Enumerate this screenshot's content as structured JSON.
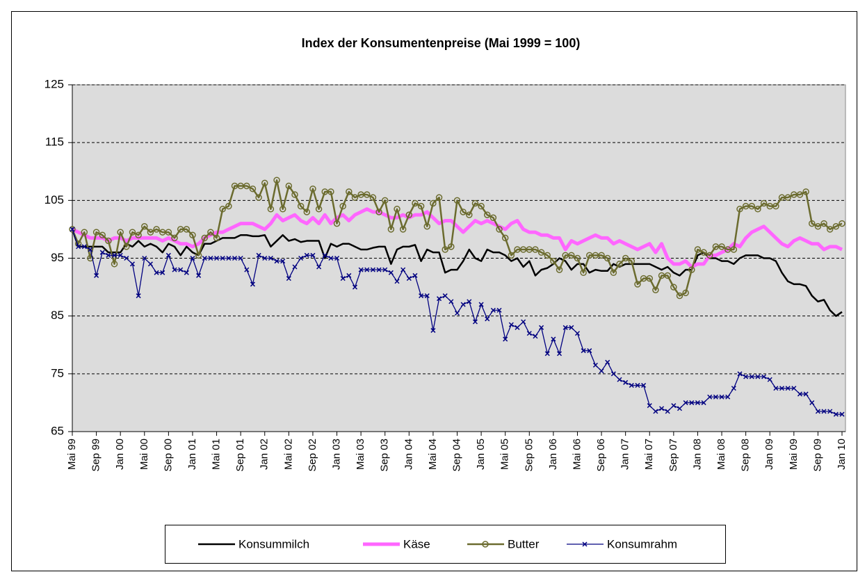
{
  "chart_data": {
    "type": "line",
    "title": "Index der Konsumentenpreise  (Mai 1999 = 100)",
    "categories": [
      "Mai 99",
      null,
      null,
      null,
      "Sep 99",
      null,
      null,
      null,
      "Jan 00",
      null,
      null,
      null,
      "Mai 00",
      null,
      null,
      null,
      "Sep 00",
      null,
      null,
      null,
      "Jan 01",
      null,
      null,
      null,
      "Mai 01",
      null,
      null,
      null,
      "Sep 01",
      null,
      null,
      null,
      "Jan 02",
      null,
      null,
      null,
      "Mai 02",
      null,
      null,
      null,
      "Sep 02",
      null,
      null,
      null,
      "Jan 03",
      null,
      null,
      null,
      "Mai 03",
      null,
      null,
      null,
      "Sep 03",
      null,
      null,
      null,
      "Jan 04",
      null,
      null,
      null,
      "Mai 04",
      null,
      null,
      null,
      "Sep 04",
      null,
      null,
      null,
      "Jan 05",
      null,
      null,
      null,
      "Mai 05",
      null,
      null,
      null,
      "Sep 05",
      null,
      null,
      null,
      "Jan 06",
      null,
      null,
      null,
      "Mai 06",
      null,
      null,
      null,
      "Sep 06",
      null,
      null,
      null,
      "Jan 07",
      null,
      null,
      null,
      "Mai 07",
      null,
      null,
      null,
      "Sep 07",
      null,
      null,
      null,
      "Jan 08",
      null,
      null,
      null,
      "Mai 08",
      null,
      null,
      null,
      "Sep 08",
      null,
      null,
      null,
      "Jan 09",
      null,
      null,
      null,
      "Mai 09",
      null,
      null,
      null,
      "Sep 09",
      null,
      null,
      null,
      "Jan 10"
    ],
    "series": [
      {
        "name": "Konsummilch",
        "color": "#000000",
        "marker": "none",
        "values": [
          100,
          97,
          97,
          97,
          97,
          97,
          96,
          96,
          96,
          97.5,
          97,
          98,
          97,
          97.5,
          97,
          96,
          97.5,
          97,
          95.5,
          97,
          96,
          95.5,
          97.5,
          97.5,
          98,
          98.5,
          98.5,
          98.5,
          99,
          99,
          98.8,
          98.8,
          99,
          97,
          98,
          99,
          98,
          98.3,
          97.8,
          98,
          98,
          98,
          95,
          97.5,
          97,
          97.5,
          97.5,
          97,
          96.5,
          96.5,
          96.8,
          97,
          97,
          94,
          96.5,
          97,
          97,
          97.3,
          94.5,
          96.5,
          96,
          96,
          92.5,
          93,
          93,
          94.5,
          96.5,
          95,
          94.5,
          96.5,
          96,
          96,
          95.5,
          94.5,
          95,
          93.5,
          94.5,
          92,
          93,
          93.3,
          94,
          95,
          94.5,
          93,
          94,
          94,
          92.5,
          93,
          92.8,
          92.8,
          94,
          93.5,
          94,
          94,
          94,
          94,
          94,
          93.5,
          93,
          93.5,
          92.5,
          92,
          93,
          93,
          95.5,
          96,
          95,
          95,
          94.5,
          94.5,
          94,
          95,
          95.5,
          95.5,
          95.5,
          95,
          95,
          94.5,
          92.5,
          91,
          90.5,
          90.5,
          90.2,
          88.5,
          87.5,
          87.8,
          86,
          85,
          85.7
        ]
      },
      {
        "name": "Käse",
        "color": "#ff66ff",
        "marker": "none",
        "values": [
          100,
          99.5,
          99,
          98.5,
          98.5,
          98.5,
          98,
          98.5,
          98.5,
          98,
          98.5,
          98.5,
          98.5,
          98.5,
          98.5,
          98,
          98.5,
          98,
          97.5,
          97.5,
          97,
          97.5,
          98.5,
          99,
          99.5,
          99.5,
          100,
          100.5,
          101,
          101,
          101,
          100.5,
          100,
          101,
          102.5,
          101.5,
          102,
          102.5,
          101.5,
          101,
          102,
          101,
          102.5,
          101,
          102,
          102.5,
          101.5,
          102.5,
          103,
          103.5,
          103,
          103,
          102.5,
          102,
          102,
          102.5,
          102,
          102.5,
          102.5,
          103,
          102,
          101,
          101.5,
          101.5,
          100.5,
          99.5,
          100.5,
          101.5,
          101,
          101.5,
          101,
          100.5,
          100,
          101,
          101.5,
          100,
          99.5,
          99.5,
          99,
          99,
          98.5,
          98.5,
          96.5,
          98,
          97.5,
          98,
          98.5,
          99,
          98.5,
          98.5,
          97.5,
          98,
          97.5,
          97,
          96.5,
          97,
          97.5,
          96,
          97.5,
          95,
          94,
          94,
          94.5,
          93.5,
          94,
          94,
          95.5,
          95.5,
          96,
          96.5,
          97.5,
          97,
          98.5,
          99.5,
          100,
          100.5,
          99.5,
          98.5,
          97.5,
          97,
          98,
          98.5,
          98,
          97.5,
          97.5,
          96.5,
          97,
          97,
          96.5
        ]
      },
      {
        "name": "Butter",
        "color": "#6b6b2e",
        "marker": "circle",
        "values": [
          100,
          97.5,
          99.5,
          95,
          99.5,
          99,
          98,
          94,
          99.5,
          97,
          99.5,
          99,
          100.5,
          99.5,
          100,
          99.5,
          99.5,
          98.5,
          100,
          100,
          99,
          95.5,
          98.5,
          99.5,
          98.5,
          103.5,
          104,
          107.5,
          107.5,
          107.5,
          107,
          105.5,
          108,
          103.5,
          108.5,
          103.5,
          107.5,
          106,
          104,
          103,
          107,
          103.5,
          106.5,
          106.5,
          101,
          104,
          106.5,
          105.5,
          106,
          106,
          105.5,
          103,
          105,
          100,
          103.5,
          100,
          102.5,
          104.5,
          104,
          100.5,
          104.5,
          105.5,
          96.5,
          97,
          105,
          103,
          102.5,
          104.5,
          104,
          102.5,
          102,
          100,
          98.5,
          95.5,
          96.5,
          96.5,
          96.5,
          96.5,
          96,
          95.5,
          94.5,
          93,
          95.5,
          95.5,
          95,
          92.5,
          95.5,
          95.5,
          95.5,
          95,
          92.5,
          94,
          95,
          94.5,
          90.5,
          91.5,
          91.5,
          89.5,
          92,
          92,
          90,
          88.5,
          89,
          93,
          96.5,
          96,
          95.5,
          97,
          97,
          96.5,
          96.5,
          103.5,
          104,
          104,
          103.5,
          104.5,
          104,
          104,
          105.5,
          105.5,
          106,
          106,
          106.5,
          101,
          100.5,
          101,
          100,
          100.5,
          101
        ]
      },
      {
        "name": "Konsumrahm",
        "color": "#000080",
        "marker": "x",
        "values": [
          100,
          97,
          97,
          96.5,
          92,
          96,
          95.5,
          95.5,
          95.5,
          95,
          94,
          88.5,
          95,
          94,
          92.5,
          92.5,
          95.5,
          93,
          93,
          92.5,
          95,
          92,
          95,
          95,
          95,
          95,
          95,
          95,
          95,
          93,
          90.5,
          95.5,
          95,
          95,
          94.5,
          94.5,
          91.5,
          93.5,
          95,
          95.5,
          95.5,
          93.5,
          95.5,
          95,
          95,
          91.5,
          92,
          90,
          93,
          93,
          93,
          93,
          93,
          92.5,
          91,
          93,
          91.5,
          92,
          88.5,
          88.5,
          82.5,
          88,
          88.5,
          87.5,
          85.5,
          87,
          87.5,
          84,
          87,
          84.5,
          86,
          86,
          81,
          83.5,
          83,
          84,
          82,
          81.5,
          83,
          78.5,
          81,
          78.5,
          83,
          83,
          82,
          79,
          79,
          76.5,
          75.5,
          77,
          75,
          74,
          73.5,
          73,
          73,
          73,
          69.5,
          68.5,
          69,
          68.5,
          69.5,
          69,
          70,
          70,
          70,
          70,
          71,
          71,
          71,
          71,
          72.5,
          75,
          74.5,
          74.5,
          74.5,
          74.5,
          74,
          72.5,
          72.5,
          72.5,
          72.5,
          71.5,
          71.5,
          70,
          68.5,
          68.5,
          68.5,
          68,
          68
        ]
      }
    ],
    "ylim": [
      65,
      125
    ],
    "yticks": [
      65,
      75,
      85,
      95,
      105,
      115,
      125
    ],
    "grid": true,
    "legend": "bottom"
  }
}
